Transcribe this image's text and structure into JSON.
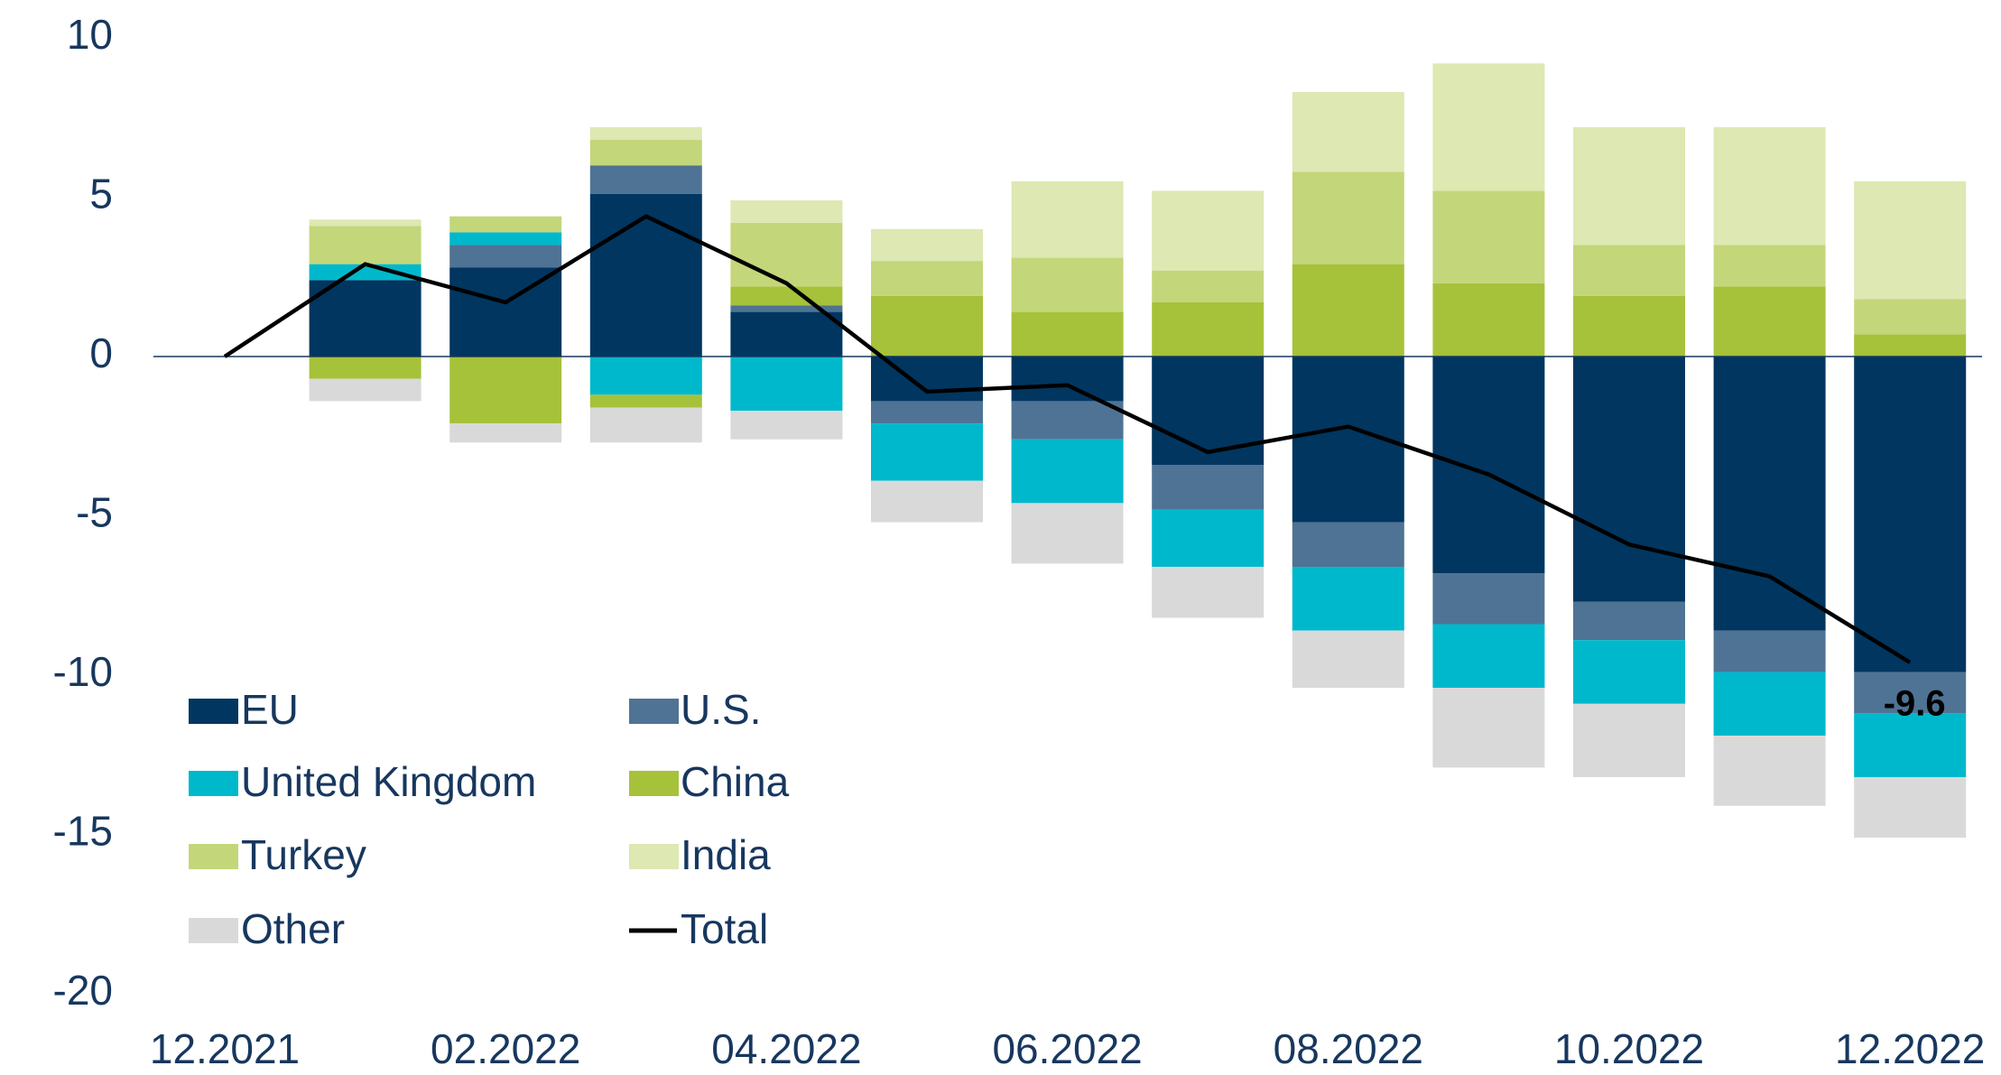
{
  "chart_data": {
    "type": "bar",
    "categories": [
      "12.2021",
      null,
      "02.2022",
      null,
      "04.2022",
      null,
      "06.2022",
      null,
      "08.2022",
      null,
      "10.2022",
      null,
      "12.2022"
    ],
    "series": [
      {
        "name": "EU",
        "color": "#003660",
        "values": [
          null,
          2.4,
          2.8,
          5.1,
          1.4,
          -1.4,
          -1.4,
          -3.4,
          -5.2,
          -6.8,
          -7.7,
          -8.6,
          -9.9
        ]
      },
      {
        "name": "U.S.",
        "color": "#4f7394",
        "values": [
          null,
          null,
          0.7,
          0.9,
          0.2,
          -0.7,
          -1.2,
          -1.4,
          -1.4,
          -1.6,
          -1.2,
          -1.3,
          -1.3
        ]
      },
      {
        "name": "United Kingdom",
        "color": "#00b8cc",
        "values": [
          null,
          0.5,
          0.4,
          -1.2,
          -1.7,
          -1.8,
          -2.0,
          -1.8,
          -2.0,
          -2.0,
          -2.0,
          -2.0,
          -2.0
        ]
      },
      {
        "name": "China",
        "color": "#a6c23a",
        "values": [
          null,
          -0.7,
          -2.1,
          -0.4,
          0.6,
          1.9,
          1.4,
          1.7,
          2.9,
          2.3,
          1.9,
          2.2,
          0.7
        ]
      },
      {
        "name": "Turkey",
        "color": "#c4d67a",
        "values": [
          null,
          1.2,
          0.5,
          0.8,
          2.0,
          1.1,
          1.7,
          1.0,
          2.9,
          2.9,
          1.6,
          1.3,
          1.1
        ]
      },
      {
        "name": "India",
        "color": "#dde8b2",
        "values": [
          null,
          0.2,
          null,
          0.4,
          0.7,
          1.0,
          2.4,
          2.5,
          2.5,
          4.0,
          3.7,
          3.7,
          3.7
        ]
      },
      {
        "name": "Other",
        "color": "#d9d9d9",
        "values": [
          null,
          -0.7,
          -0.6,
          -1.1,
          -0.9,
          -1.3,
          -1.9,
          -1.6,
          -1.8,
          -2.5,
          -2.3,
          -2.2,
          -1.9
        ]
      },
      {
        "name": "Total",
        "type": "line",
        "color": "#000000",
        "values": [
          0,
          2.9,
          1.7,
          4.4,
          2.3,
          -1.1,
          -0.9,
          -3.0,
          -2.2,
          -3.7,
          -5.9,
          -6.9,
          -9.6
        ],
        "value_labels": [
          null,
          null,
          null,
          null,
          null,
          null,
          null,
          null,
          null,
          null,
          null,
          null,
          "-9.6"
        ]
      }
    ],
    "ylim": [
      -20,
      10
    ],
    "yticks": [
      -20,
      -15,
      -10,
      -5,
      0,
      5,
      10
    ],
    "grid": false
  }
}
